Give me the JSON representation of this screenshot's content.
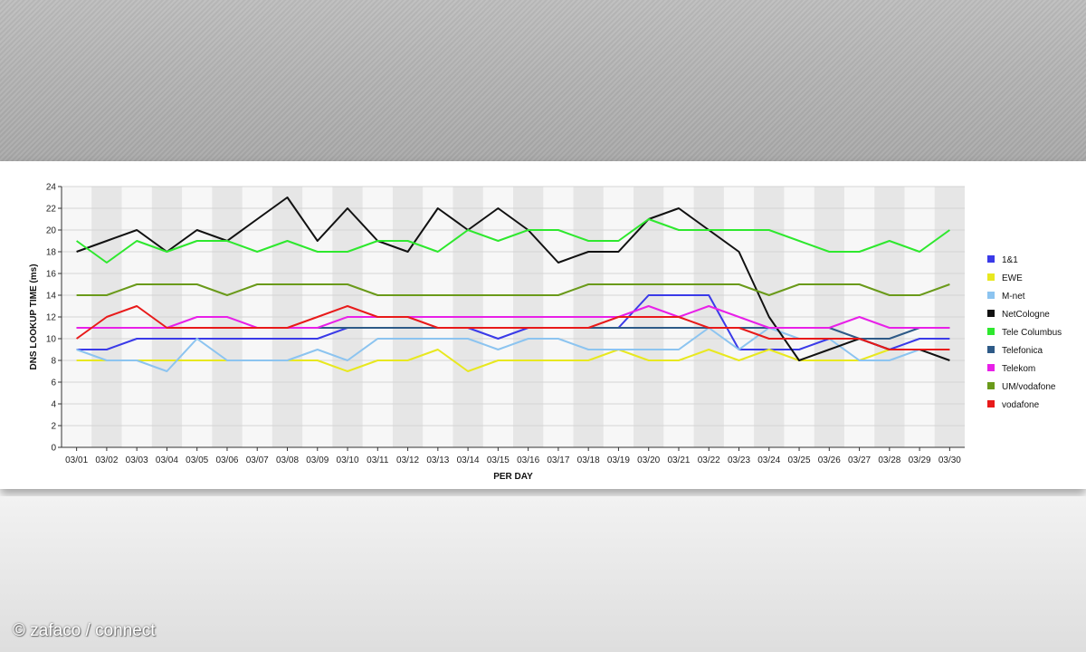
{
  "watermark": "© zafaco / connect",
  "chart_data": {
    "type": "line",
    "xlabel": "PER DAY",
    "ylabel": "DNS LOOKUP TIME (ms)",
    "ylim": [
      0,
      24
    ],
    "yticks": [
      0,
      2,
      4,
      6,
      8,
      10,
      12,
      14,
      16,
      18,
      20,
      22,
      24
    ],
    "grid": true,
    "legend_position": "right",
    "categories": [
      "03/01",
      "03/02",
      "03/03",
      "03/04",
      "03/05",
      "03/06",
      "03/07",
      "03/08",
      "03/09",
      "03/10",
      "03/11",
      "03/12",
      "03/13",
      "03/14",
      "03/15",
      "03/16",
      "03/17",
      "03/18",
      "03/19",
      "03/20",
      "03/21",
      "03/22",
      "03/23",
      "03/24",
      "03/25",
      "03/26",
      "03/27",
      "03/28",
      "03/29",
      "03/30"
    ],
    "series": [
      {
        "name": "1&1",
        "color": "#3a3ae8",
        "values": [
          9,
          9,
          10,
          10,
          10,
          10,
          10,
          10,
          10,
          11,
          11,
          11,
          11,
          11,
          10,
          11,
          11,
          11,
          11,
          14,
          14,
          14,
          9,
          9,
          9,
          10,
          10,
          9,
          10,
          10
        ]
      },
      {
        "name": "EWE",
        "color": "#e8e820",
        "values": [
          8,
          8,
          8,
          8,
          8,
          8,
          8,
          8,
          8,
          7,
          8,
          8,
          9,
          7,
          8,
          8,
          8,
          8,
          9,
          8,
          8,
          9,
          8,
          9,
          8,
          8,
          8,
          9,
          9,
          9
        ]
      },
      {
        "name": "M-net",
        "color": "#8cc4f0",
        "values": [
          9,
          8,
          8,
          7,
          10,
          8,
          8,
          8,
          9,
          8,
          10,
          10,
          10,
          10,
          9,
          10,
          10,
          9,
          9,
          9,
          9,
          11,
          9,
          11,
          10,
          10,
          8,
          8,
          9,
          9
        ]
      },
      {
        "name": "NetCologne",
        "color": "#111111",
        "values": [
          18,
          19,
          20,
          18,
          20,
          19,
          21,
          23,
          19,
          22,
          19,
          18,
          22,
          20,
          22,
          20,
          17,
          18,
          18,
          21,
          22,
          20,
          18,
          12,
          8,
          9,
          10,
          9,
          9,
          8
        ]
      },
      {
        "name": "Tele Columbus",
        "color": "#2ee82e",
        "values": [
          19,
          17,
          19,
          18,
          19,
          19,
          18,
          19,
          18,
          18,
          19,
          19,
          18,
          20,
          19,
          20,
          20,
          19,
          19,
          21,
          20,
          20,
          20,
          20,
          19,
          18,
          18,
          19,
          18,
          20
        ]
      },
      {
        "name": "Telefonica",
        "color": "#2e5a87",
        "values": [
          11,
          11,
          11,
          11,
          11,
          11,
          11,
          11,
          11,
          11,
          11,
          11,
          11,
          11,
          11,
          11,
          11,
          11,
          11,
          11,
          11,
          11,
          11,
          11,
          11,
          11,
          10,
          10,
          11,
          11
        ]
      },
      {
        "name": "Telekom",
        "color": "#e820e8",
        "values": [
          11,
          11,
          11,
          11,
          12,
          12,
          11,
          11,
          11,
          12,
          12,
          12,
          12,
          12,
          12,
          12,
          12,
          12,
          12,
          13,
          12,
          13,
          12,
          11,
          11,
          11,
          12,
          11,
          11,
          11
        ]
      },
      {
        "name": "UM/vodafone",
        "color": "#6a9a1a",
        "values": [
          14,
          14,
          15,
          15,
          15,
          14,
          15,
          15,
          15,
          15,
          14,
          14,
          14,
          14,
          14,
          14,
          14,
          15,
          15,
          15,
          15,
          15,
          15,
          14,
          15,
          15,
          15,
          14,
          14,
          15
        ]
      },
      {
        "name": "vodafone",
        "color": "#e81a1a",
        "values": [
          10,
          12,
          13,
          11,
          11,
          11,
          11,
          11,
          12,
          13,
          12,
          12,
          11,
          11,
          11,
          11,
          11,
          11,
          12,
          12,
          12,
          11,
          11,
          10,
          10,
          10,
          10,
          9,
          9,
          9
        ]
      }
    ]
  }
}
